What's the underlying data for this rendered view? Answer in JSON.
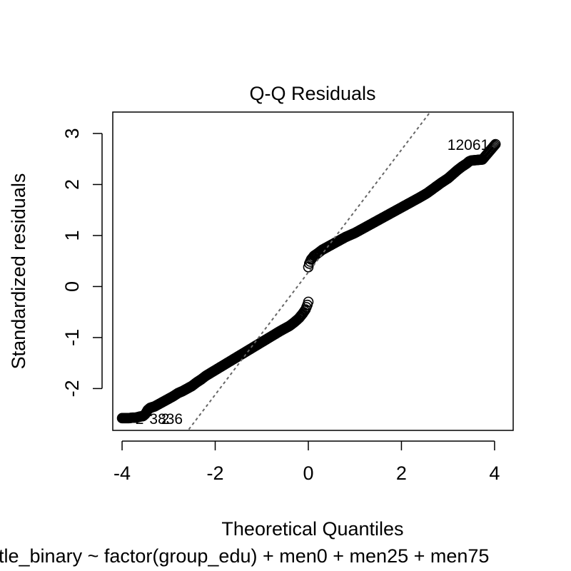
{
  "chart_data": {
    "type": "scatter",
    "title": "Q-Q Residuals",
    "xlabel": "Theoretical Quantiles",
    "ylabel": "Standardized residuals",
    "sub_caption": "tle_binary ~ factor(group_edu) + men0 + men25 + men75",
    "xlim": [
      -4.2,
      4.4
    ],
    "ylim": [
      -2.82,
      3.42
    ],
    "x_ticks": [
      -4,
      -2,
      0,
      2,
      4
    ],
    "y_ticks": [
      -2,
      -1,
      0,
      1,
      2,
      3
    ],
    "x_tick_labels": [
      "-4",
      "-2",
      "0",
      "2",
      "4"
    ],
    "y_tick_labels": [
      "-2",
      "-1",
      "0",
      "1",
      "2",
      "3"
    ],
    "reference_line": {
      "intercept": 0.28,
      "slope": 1.2,
      "style": "dashed",
      "color": "#666666"
    },
    "series": [
      {
        "marker": "open-circle",
        "color": "#000000",
        "points": [
          [
            -4.0,
            -2.58
          ],
          [
            -3.85,
            -2.58
          ],
          [
            -3.78,
            -2.57
          ],
          [
            -3.7,
            -2.57
          ],
          [
            -3.62,
            -2.55
          ],
          [
            -3.55,
            -2.54
          ],
          [
            -3.5,
            -2.5
          ],
          [
            -3.45,
            -2.42
          ],
          [
            -3.4,
            -2.38
          ],
          [
            -3.3,
            -2.35
          ],
          [
            -3.2,
            -2.3
          ],
          [
            -3.1,
            -2.25
          ],
          [
            -3.0,
            -2.2
          ],
          [
            -2.9,
            -2.15
          ],
          [
            -2.8,
            -2.09
          ],
          [
            -2.7,
            -2.05
          ],
          [
            -2.6,
            -2.0
          ],
          [
            -2.5,
            -1.95
          ],
          [
            -2.4,
            -1.88
          ],
          [
            -2.3,
            -1.82
          ],
          [
            -2.2,
            -1.75
          ],
          [
            -2.0,
            -1.64
          ],
          [
            -1.8,
            -1.53
          ],
          [
            -1.6,
            -1.42
          ],
          [
            -1.4,
            -1.31
          ],
          [
            -1.2,
            -1.2
          ],
          [
            -1.0,
            -1.09
          ],
          [
            -0.8,
            -0.98
          ],
          [
            -0.6,
            -0.87
          ],
          [
            -0.4,
            -0.77
          ],
          [
            -0.3,
            -0.7
          ],
          [
            -0.2,
            -0.62
          ],
          [
            -0.12,
            -0.53
          ],
          [
            -0.06,
            -0.45
          ],
          [
            -0.02,
            -0.36
          ],
          [
            0.0,
            -0.3
          ],
          [
            0.0,
            0.38
          ],
          [
            0.02,
            0.45
          ],
          [
            0.06,
            0.53
          ],
          [
            0.12,
            0.6
          ],
          [
            0.2,
            0.65
          ],
          [
            0.3,
            0.72
          ],
          [
            0.4,
            0.77
          ],
          [
            0.6,
            0.87
          ],
          [
            0.8,
            0.97
          ],
          [
            1.0,
            1.05
          ],
          [
            1.2,
            1.15
          ],
          [
            1.4,
            1.25
          ],
          [
            1.6,
            1.35
          ],
          [
            1.8,
            1.45
          ],
          [
            2.0,
            1.55
          ],
          [
            2.2,
            1.65
          ],
          [
            2.4,
            1.75
          ],
          [
            2.55,
            1.83
          ],
          [
            2.7,
            1.93
          ],
          [
            2.85,
            2.03
          ],
          [
            3.0,
            2.12
          ],
          [
            3.1,
            2.2
          ],
          [
            3.2,
            2.28
          ],
          [
            3.3,
            2.35
          ],
          [
            3.4,
            2.41
          ],
          [
            3.45,
            2.45
          ],
          [
            3.5,
            2.47
          ],
          [
            3.62,
            2.48
          ],
          [
            3.74,
            2.49
          ],
          [
            4.02,
            2.79
          ]
        ]
      }
    ],
    "point_labels": [
      {
        "text": "12061",
        "x": 4.02,
        "y": 2.79,
        "anchor": "left"
      },
      {
        "text": "2",
        "x": -3.85,
        "y": -2.58,
        "anchor": "right"
      },
      {
        "text": "3836",
        "x": -3.55,
        "y": -2.58,
        "anchor": "right"
      },
      {
        "text": "2",
        "x": -3.3,
        "y": -2.58,
        "anchor": "right"
      }
    ]
  }
}
